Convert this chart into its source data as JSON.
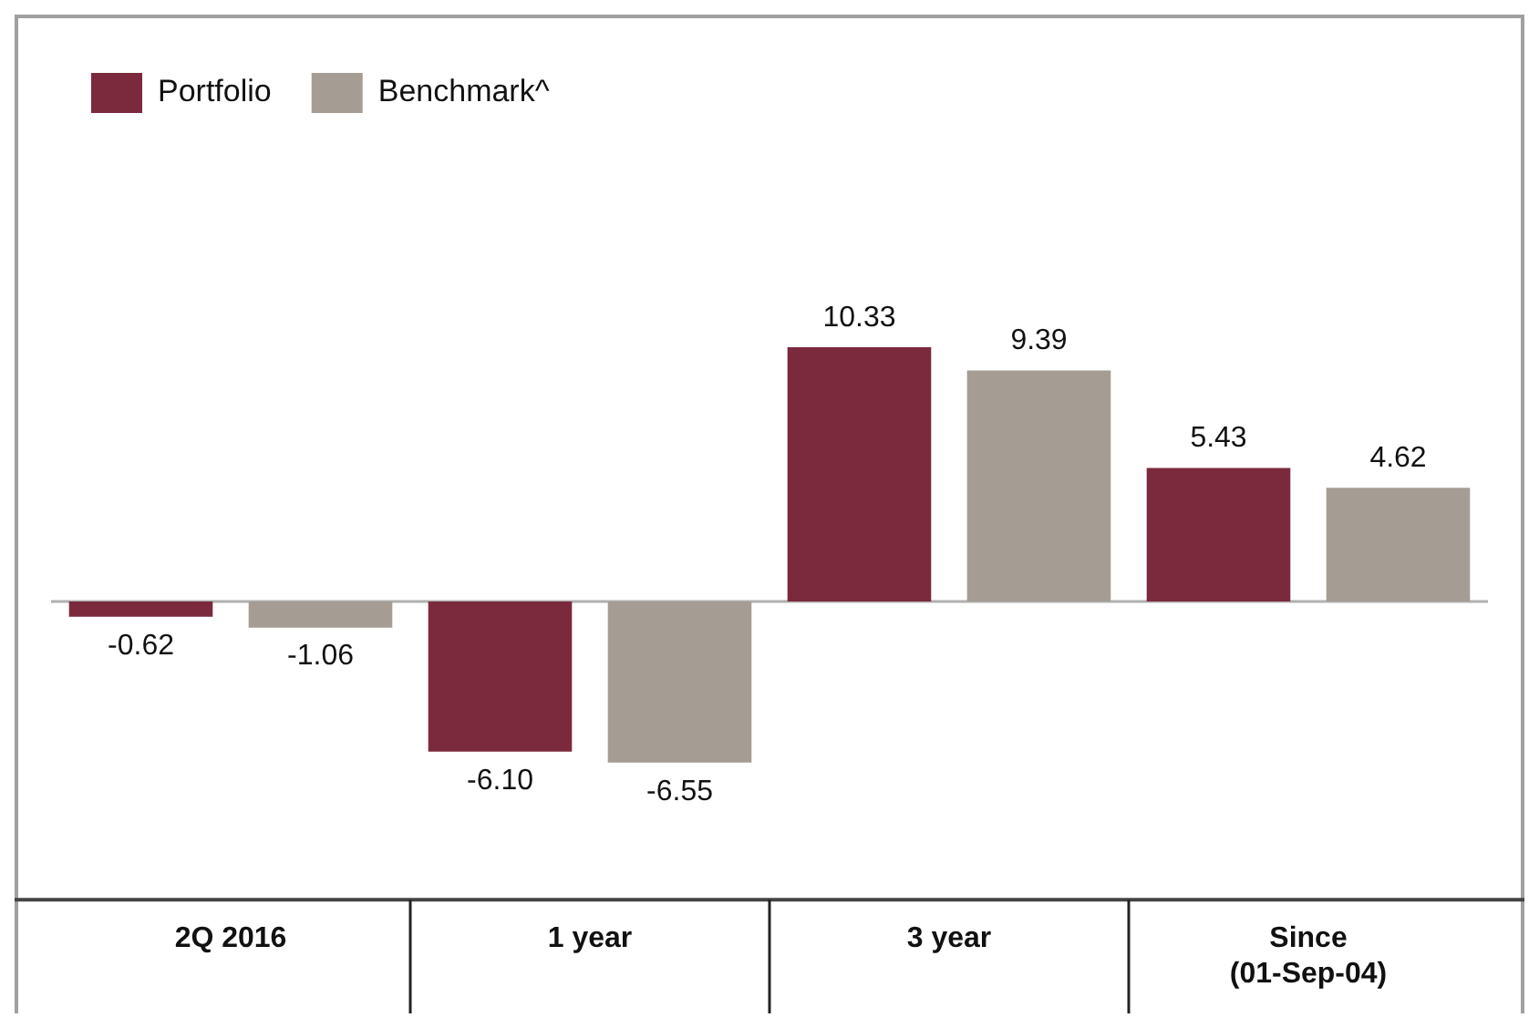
{
  "chart_data": {
    "type": "bar",
    "categories": [
      "2Q 2016",
      "1 year",
      "3 year",
      "Since (01-Sep-04)"
    ],
    "series": [
      {
        "name": "Portfolio",
        "color": "#7b2a3e",
        "values": [
          -0.62,
          -6.1,
          10.33,
          5.43
        ],
        "value_labels": [
          "-0.62",
          "-6.10",
          "10.33",
          "5.43"
        ]
      },
      {
        "name": "Benchmark^",
        "color": "#a59d94",
        "values": [
          -1.06,
          -6.55,
          9.39,
          4.62
        ],
        "value_labels": [
          "-1.06",
          "-6.55",
          "9.39",
          "4.62"
        ]
      }
    ],
    "legend": "top left"
  }
}
